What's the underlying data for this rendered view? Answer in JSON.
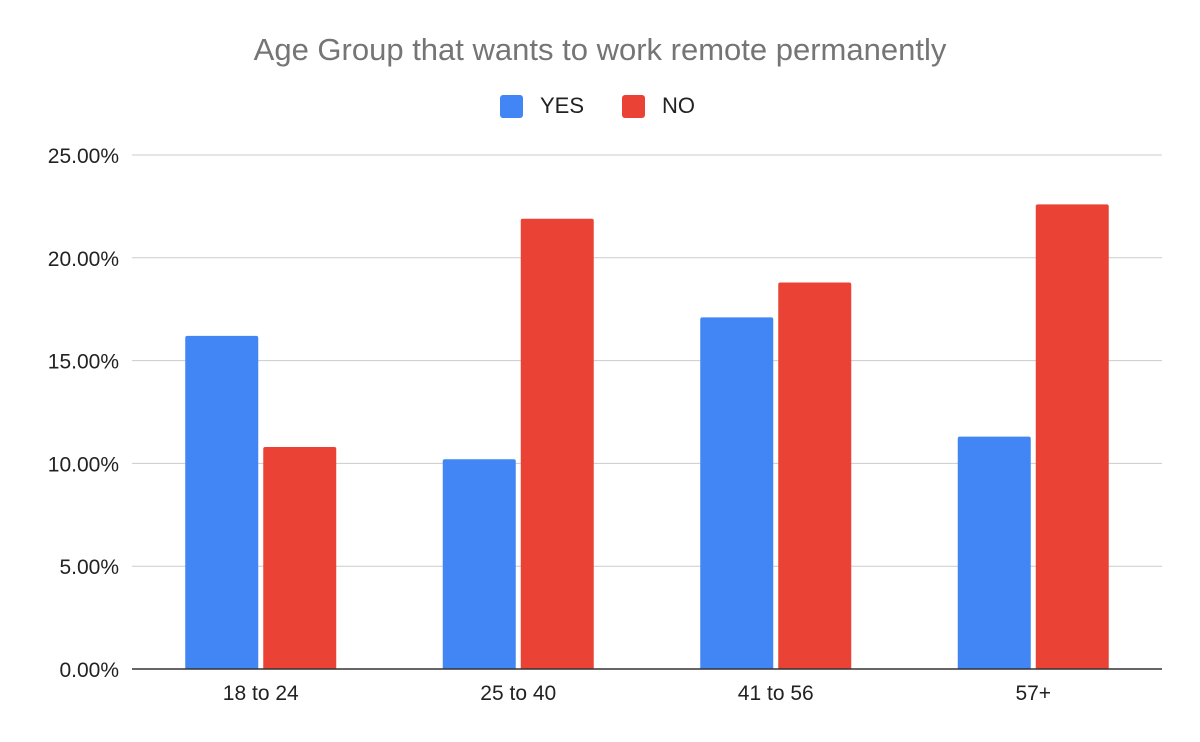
{
  "chart_data": {
    "type": "bar",
    "title": "Age Group that wants to work remote permanently",
    "xlabel": "",
    "ylabel": "",
    "categories": [
      "18 to 24",
      "25 to 40",
      "41 to 56",
      "57+"
    ],
    "series": [
      {
        "name": "YES",
        "color": "#4285f4",
        "values": [
          16.2,
          10.2,
          17.1,
          11.3
        ]
      },
      {
        "name": "NO",
        "color": "#ea4335",
        "values": [
          10.8,
          21.9,
          18.8,
          22.6
        ]
      }
    ],
    "ylim": [
      0,
      25
    ],
    "yticks": [
      "0.00%",
      "5.00%",
      "10.00%",
      "15.00%",
      "20.00%",
      "25.00%"
    ],
    "grid": true,
    "legend_position": "top"
  }
}
